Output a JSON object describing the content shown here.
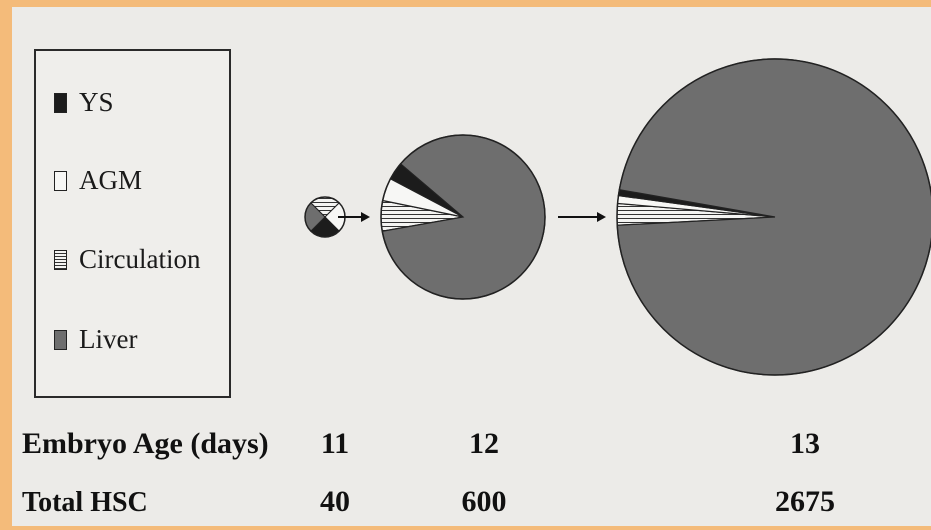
{
  "chart_data": {
    "type": "pie",
    "legend": {
      "placement": "left",
      "entries": [
        {
          "name": "YS",
          "pattern": "solid-dark",
          "color": "#1c1c1c"
        },
        {
          "name": "AGM",
          "pattern": "white",
          "color": "#f7f7f5"
        },
        {
          "name": "Circulation",
          "pattern": "horizontal-stripes",
          "color": "#f4f4f2"
        },
        {
          "name": "Liver",
          "pattern": "solid-gray",
          "color": "#6e6e6e"
        }
      ]
    },
    "rows": {
      "age_label": "Embryo Age (days)",
      "total_label": "Total HSC"
    },
    "pies": [
      {
        "age": "11",
        "total": "40",
        "total_value": 40,
        "slices": [
          {
            "name": "YS",
            "value": 25
          },
          {
            "name": "AGM",
            "value": 25
          },
          {
            "name": "Circulation",
            "value": 25
          },
          {
            "name": "Liver",
            "value": 25
          }
        ]
      },
      {
        "age": "12",
        "total": "600",
        "total_value": 600,
        "slices": [
          {
            "name": "YS",
            "value": 3.5
          },
          {
            "name": "AGM",
            "value": 4.5
          },
          {
            "name": "Circulation",
            "value": 6
          },
          {
            "name": "Liver",
            "value": 86
          }
        ]
      },
      {
        "age": "13",
        "total": "2675",
        "total_value": 2675,
        "slices": [
          {
            "name": "YS",
            "value": 0.6
          },
          {
            "name": "AGM",
            "value": 0.8
          },
          {
            "name": "Circulation",
            "value": 2.2
          },
          {
            "name": "Liver",
            "value": 96.4
          }
        ]
      }
    ],
    "colors": {
      "liver": "#6e6e6e",
      "ys": "#1c1c1c",
      "agm": "#f7f7f5",
      "circulation_bg": "#f4f4f2",
      "stripe": "#333333"
    }
  }
}
